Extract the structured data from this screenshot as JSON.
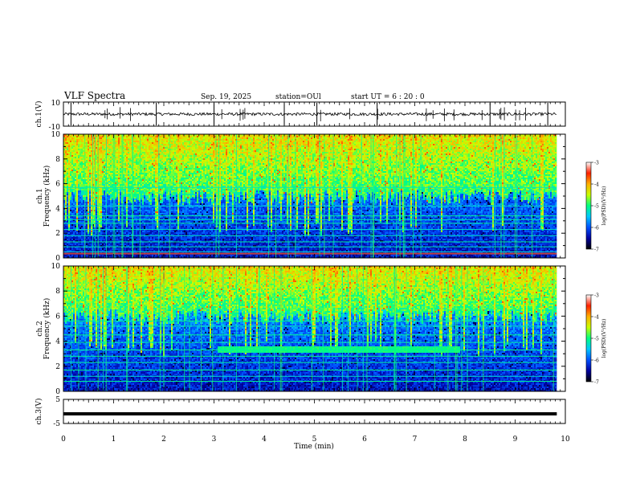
{
  "header": {
    "title": "VLF Spectra",
    "date": "Sep. 19, 2025",
    "station": "station=OUl",
    "start": "start  UT =   6  : 20 : 0"
  },
  "colorbar": {
    "label": "log(PSD)(V²/Hz)",
    "ticks": [
      "-3",
      "-4",
      "-5",
      "-6",
      "-7"
    ],
    "stops": [
      "#000000",
      "#0000a0",
      "#0050ff",
      "#00c8ff",
      "#00ff80",
      "#c8ff00",
      "#ffb000",
      "#ff2000",
      "#ffffff"
    ]
  },
  "chart_data": [
    {
      "type": "line",
      "name": "ch1-waveform",
      "ylabel": "ch.1(V)",
      "ylim": [
        -10,
        10
      ],
      "y_ticks": [
        "10",
        "-10"
      ],
      "baseline": 0,
      "spike_times_min": [
        0.15,
        1.85,
        3.0,
        4.4,
        5.05,
        6.25,
        8.5,
        9.65
      ]
    },
    {
      "type": "heatmap",
      "name": "ch1-spectrogram",
      "ylabel": "ch.1\nFrequency (kHz)",
      "ylim": [
        0,
        10
      ],
      "y_ticks": [
        "0",
        "2",
        "4",
        "6",
        "8",
        "10"
      ],
      "xlim": [
        0,
        9.83
      ],
      "noise_floor_khz": 5.5,
      "persistent_lines_khz": [
        0.5,
        0.9,
        1.3,
        1.8,
        2.3,
        2.8,
        3.1,
        3.4,
        4.2,
        5.7
      ],
      "strong_line_khz": 0.35
    },
    {
      "type": "heatmap",
      "name": "ch2-spectrogram",
      "ylabel": "ch.2\nFrequency (kHz)",
      "ylim": [
        0,
        10
      ],
      "y_ticks": [
        "0",
        "2",
        "4",
        "6",
        "8",
        "10"
      ],
      "xlim": [
        0,
        9.83
      ],
      "noise_floor_khz": 6.5,
      "persistent_lines_khz": [
        0.8,
        1.2,
        1.7,
        2.3,
        2.8,
        3.3,
        3.9,
        4.5,
        5.2,
        5.6
      ],
      "emission_band": {
        "t_start_min": 3.05,
        "t_end_min": 7.9,
        "f_low_khz": 3.05,
        "f_high_khz": 3.6
      },
      "upper_band": {
        "t_start_min": 3.3,
        "t_end_min": 7.0,
        "f_low_khz": 6.3,
        "f_high_khz": 6.6
      }
    },
    {
      "type": "line",
      "name": "ch3-waveform",
      "ylabel": "ch.3(V)",
      "ylim": [
        -5,
        5
      ],
      "y_ticks": [
        "5",
        "-5"
      ],
      "level": -1
    }
  ],
  "xaxis": {
    "label": "Time (min)",
    "xlim": [
      0,
      10
    ],
    "ticks": [
      "0",
      "1",
      "2",
      "3",
      "4",
      "5",
      "6",
      "7",
      "8",
      "9",
      "10"
    ]
  }
}
